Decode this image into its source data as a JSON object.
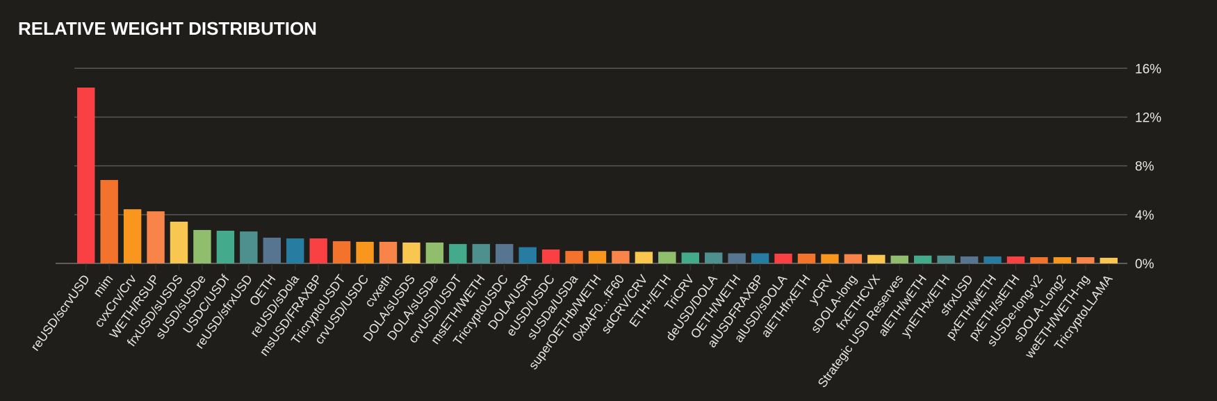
{
  "chart_data": {
    "type": "bar",
    "title": "RELATIVE WEIGHT DISTRIBUTION",
    "xlabel": "",
    "ylabel": "",
    "ylim": [
      0,
      16
    ],
    "yticks": [
      0,
      4,
      8,
      12,
      16
    ],
    "ytick_labels": [
      "0%",
      "4%",
      "8%",
      "12%",
      "16%"
    ],
    "y_axis_position": "right",
    "grid": true,
    "palette": [
      "#f94144",
      "#f3722c",
      "#f8961e",
      "#f9844a",
      "#f9c74f",
      "#90be6d",
      "#43aa8b",
      "#4d908e",
      "#577590",
      "#277da1"
    ],
    "categories": [
      "reUSD/scrvUSD",
      "mim",
      "cvxCrv/Crv",
      "WETH/RSUP",
      "frxUSD/sUSDS",
      "sUSD/sUSDe",
      "USDC/USDf",
      "reUSD/sfrxUSD",
      "OETH",
      "reUSD/sDola",
      "msUSD/FRAXBP",
      "TricryptoUSDT",
      "crvUSD/USDC",
      "cvxeth",
      "DOLA/sUSDS",
      "DOLA/sUSDe",
      "crvUSD/USDT",
      "msETH/WETH",
      "TricryptoUSDC",
      "DOLA/USR",
      "eUSD/USDC",
      "sUSDa/USDa",
      "superOETHb/WETH",
      "0xbAF0...fF60",
      "sdCRV/CRV",
      "ETH+/ETH",
      "TriCRV",
      "deUSD/DOLA",
      "OETH/WETH",
      "alUSDFRAXBP",
      "alUSD/sDOLA",
      "alETHfrxETH",
      "yCRV",
      "sDOLA-long",
      "frxETHCVX",
      "Strategic USD Reserves",
      "alETH/wETH",
      "ynETHx/ETH",
      "sfrxUSD",
      "pxETH/wETH",
      "pxETH/stETH",
      "sUSDe-long-v2",
      "sDOLA-Long2",
      "weETH/WETH-ng",
      "TricryptoLLAMA"
    ],
    "values": [
      14.42,
      6.84,
      4.44,
      4.27,
      3.42,
      2.74,
      2.68,
      2.62,
      2.11,
      2.05,
      2.05,
      1.82,
      1.77,
      1.77,
      1.71,
      1.71,
      1.59,
      1.59,
      1.59,
      1.33,
      1.14,
      1.02,
      1.02,
      1.02,
      0.95,
      0.95,
      0.89,
      0.89,
      0.83,
      0.83,
      0.8,
      0.8,
      0.76,
      0.76,
      0.7,
      0.64,
      0.64,
      0.64,
      0.57,
      0.57,
      0.57,
      0.51,
      0.51,
      0.51,
      0.46
    ]
  }
}
